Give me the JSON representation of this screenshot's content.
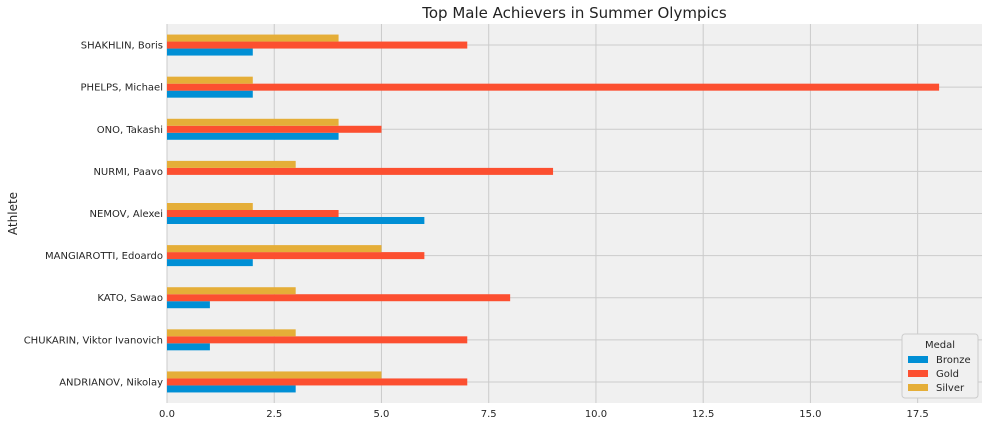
{
  "chart_data": {
    "type": "bar",
    "orientation": "horizontal",
    "title": "Top Male Achievers in Summer Olympics",
    "xlabel": "",
    "ylabel": "Athlete",
    "xlim": [
      0,
      19
    ],
    "x_ticks": [
      "0.0",
      "2.5",
      "5.0",
      "7.5",
      "10.0",
      "12.5",
      "15.0",
      "17.5"
    ],
    "x_tick_values": [
      0,
      2.5,
      5,
      7.5,
      10,
      12.5,
      15,
      17.5
    ],
    "categories": [
      "ANDRIANOV, Nikolay",
      "CHUKARIN, Viktor Ivanovich",
      "KATO, Sawao",
      "MANGIAROTTI, Edoardo",
      "NEMOV, Alexei",
      "NURMI, Paavo",
      "ONO, Takashi",
      "PHELPS, Michael",
      "SHAKHLIN, Boris"
    ],
    "series": [
      {
        "name": "Bronze",
        "color": "#008fd5",
        "values": [
          3,
          1,
          1,
          2,
          6,
          0,
          4,
          2,
          2
        ]
      },
      {
        "name": "Gold",
        "color": "#fc4f30",
        "values": [
          7,
          7,
          8,
          6,
          4,
          9,
          5,
          18,
          7
        ]
      },
      {
        "name": "Silver",
        "color": "#e5ae38",
        "values": [
          5,
          3,
          3,
          5,
          2,
          3,
          4,
          2,
          4
        ]
      }
    ],
    "legend": {
      "title": "Medal",
      "position": "lower right"
    },
    "grid": true,
    "style": {
      "background": "#f0f0f0",
      "grid_color": "#cbcbcb"
    }
  }
}
